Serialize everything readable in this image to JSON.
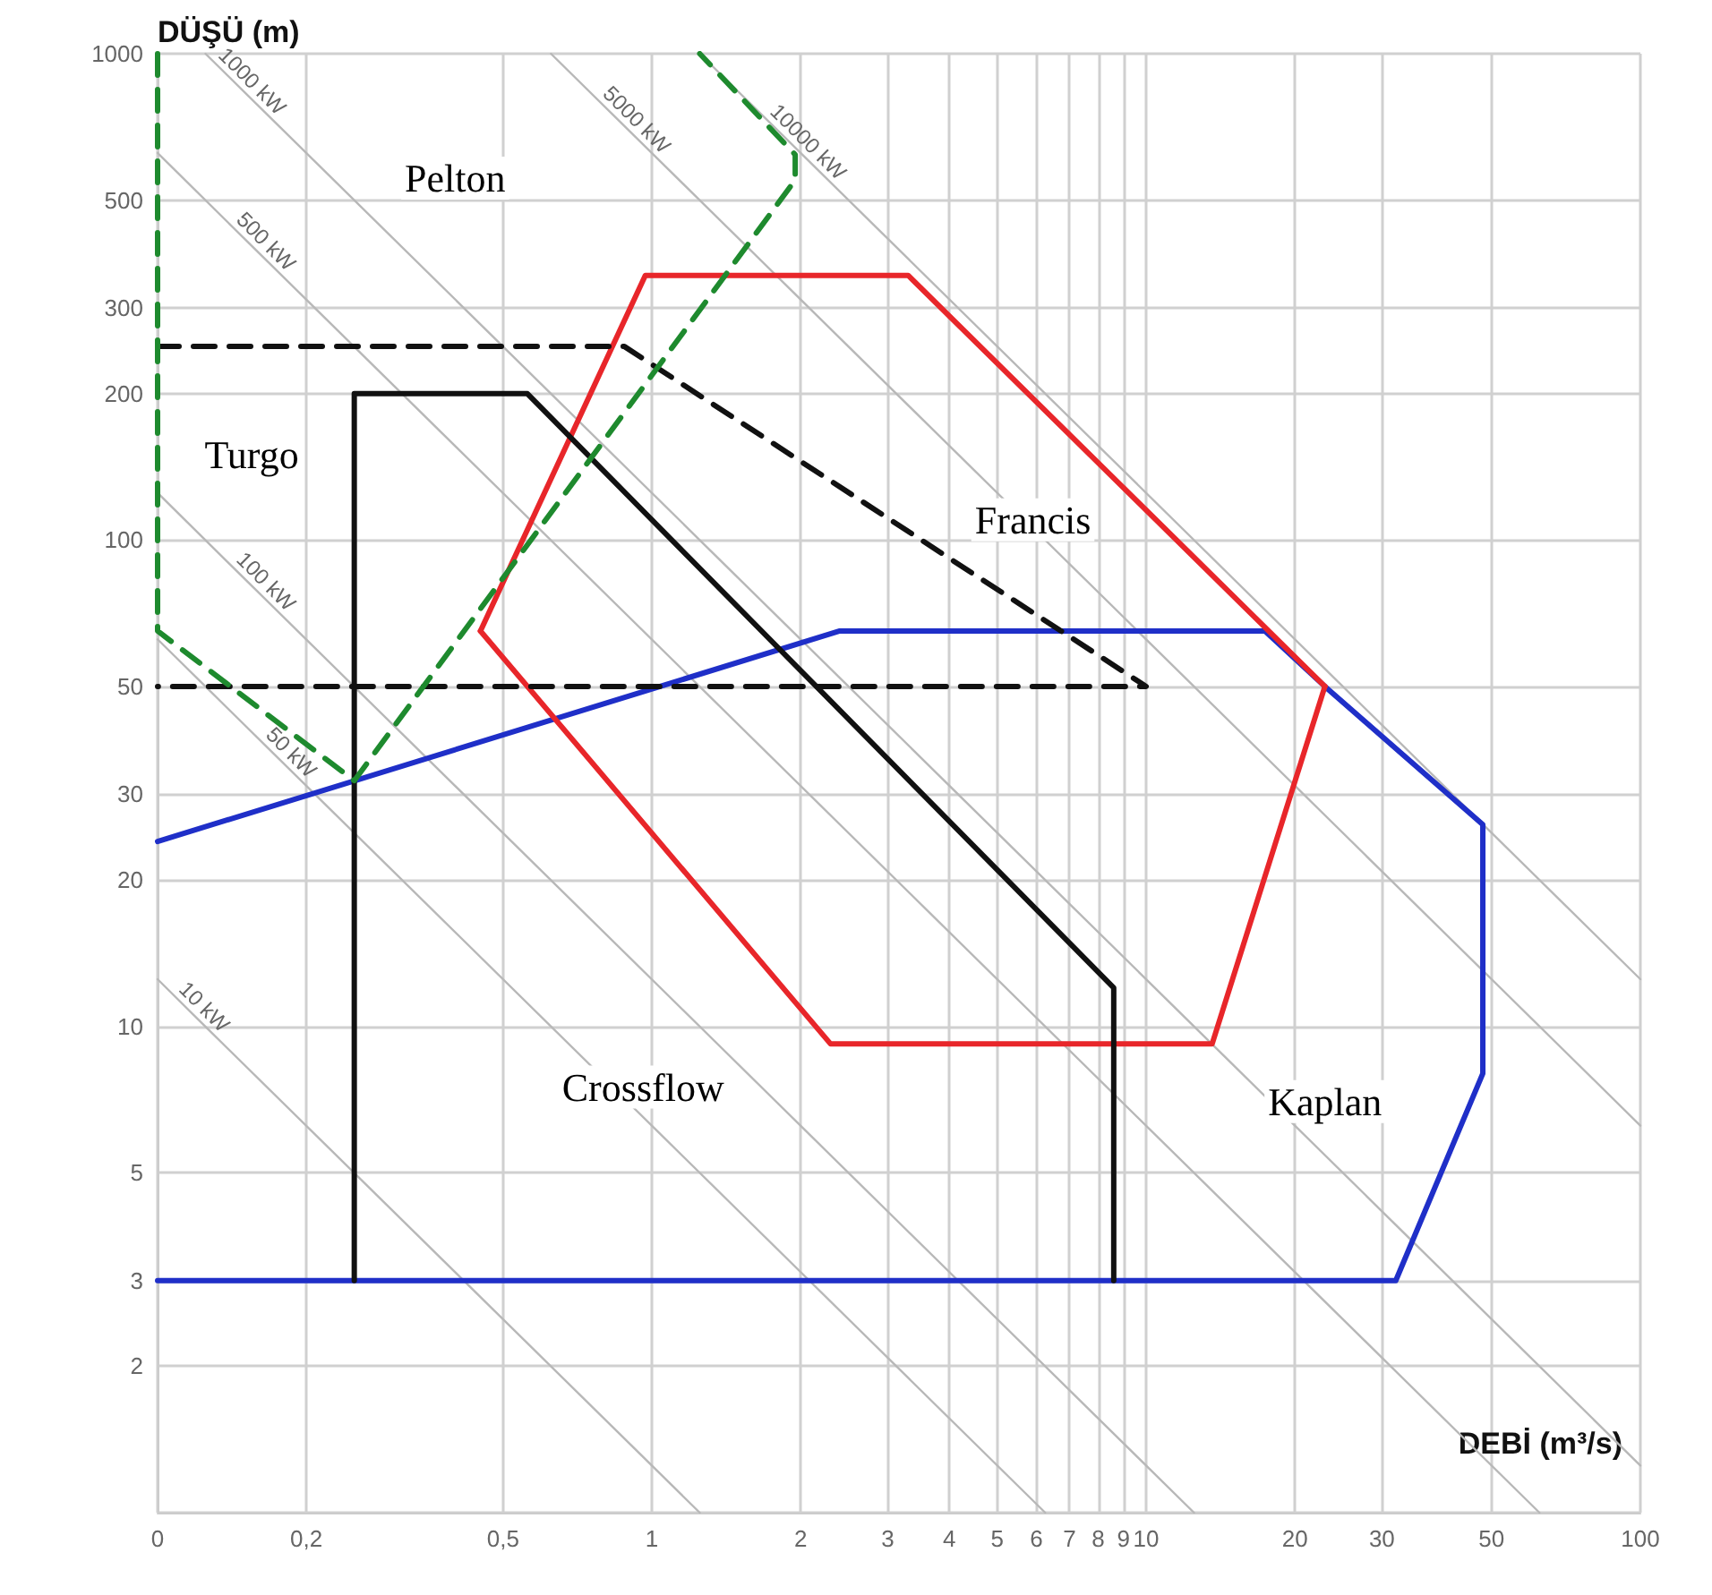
{
  "chart_data": {
    "type": "line",
    "xlabel": "DEBİ (m³/s)",
    "ylabel": "DÜŞÜ (m)",
    "log": "xy",
    "grid": true,
    "legend": false,
    "marker": "none",
    "xlim": [
      0.1,
      100
    ],
    "ylim": [
      1,
      1000
    ],
    "xticks": [
      {
        "value": 0.1,
        "label": "0"
      },
      {
        "value": 0.2,
        "label": "0,2"
      },
      {
        "value": 0.5,
        "label": "0,5"
      },
      1,
      2,
      3,
      4,
      5,
      6,
      7,
      8,
      9,
      10,
      20,
      30,
      50,
      100
    ],
    "yticks": [
      {
        "value": 1,
        "label": null
      },
      2,
      3,
      5,
      10,
      20,
      30,
      50,
      100,
      200,
      300,
      500,
      1000
    ],
    "series": [
      {
        "name": "10 kW",
        "color": "#b8b8b8",
        "x": [
          0.1,
          0.12,
          1.25
        ],
        "values": [
          12.5,
          10.4,
          1
        ]
      },
      {
        "name": "50 kW",
        "color": "#b8b8b8",
        "x": [
          0.1,
          0.18,
          6.25
        ],
        "values": [
          62.5,
          34.7,
          1
        ]
      },
      {
        "name": "100 kW",
        "color": "#b8b8b8",
        "x": [
          0.1,
          0.16,
          12.5
        ],
        "values": [
          125,
          78,
          1
        ]
      },
      {
        "name": "500 kW",
        "color": "#b8b8b8",
        "x": [
          0.1,
          0.16,
          62.5
        ],
        "values": [
          625,
          390,
          1
        ]
      },
      {
        "name": "1000 kW",
        "color": "#b8b8b8",
        "x": [
          0.125,
          0.15,
          100
        ],
        "values": [
          1000,
          833,
          1.25
        ]
      },
      {
        "name": "5000 kW",
        "color": "#b8b8b8",
        "x": [
          0.625,
          0.9,
          100
        ],
        "values": [
          1000,
          694,
          6.25
        ]
      },
      {
        "name": "10000 kW",
        "color": "#b8b8b8",
        "x": [
          1.25,
          2,
          100
        ],
        "values": [
          1000,
          625,
          12.5
        ]
      },
      {
        "color": "#1f2fc8",
        "line_style": "solid",
        "x": [
          0.1,
          32,
          48,
          48,
          23,
          17.4,
          2.4,
          0.1
        ],
        "values": [
          3,
          3,
          8,
          26,
          50,
          65,
          65,
          24
        ]
      },
      {
        "color": "#e8262a",
        "line_style": "solid",
        "x": [
          0.45,
          0.97,
          3.3,
          23
        ],
        "values": [
          65,
          350,
          350,
          50
        ]
      },
      {
        "color": "#e8262a",
        "line_style": "solid",
        "x": [
          23,
          13.6,
          2.3,
          0.45
        ],
        "values": [
          50,
          9.2,
          9.2,
          65
        ]
      },
      {
        "color": "#111111",
        "line_style": "solid",
        "x": [
          0.25,
          0.25,
          0.56,
          8.6,
          8.6
        ],
        "values": [
          3,
          200,
          200,
          12,
          3
        ]
      },
      {
        "color": "#111111",
        "line_style": "dashed",
        "x": [
          0.1,
          0.88,
          10,
          0.1
        ],
        "values": [
          250,
          250,
          50,
          50
        ]
      },
      {
        "color": "#1e8a2e",
        "line_style": "dashed",
        "x": [
          0.1,
          0.1,
          0.25,
          1.95,
          1.95,
          1.25
        ],
        "values": [
          1000,
          65,
          32,
          550,
          620,
          1000
        ]
      }
    ],
    "annotations": [
      "Pelton",
      "Turgo",
      "Francis",
      "Crossflow",
      "Kaplan"
    ]
  }
}
